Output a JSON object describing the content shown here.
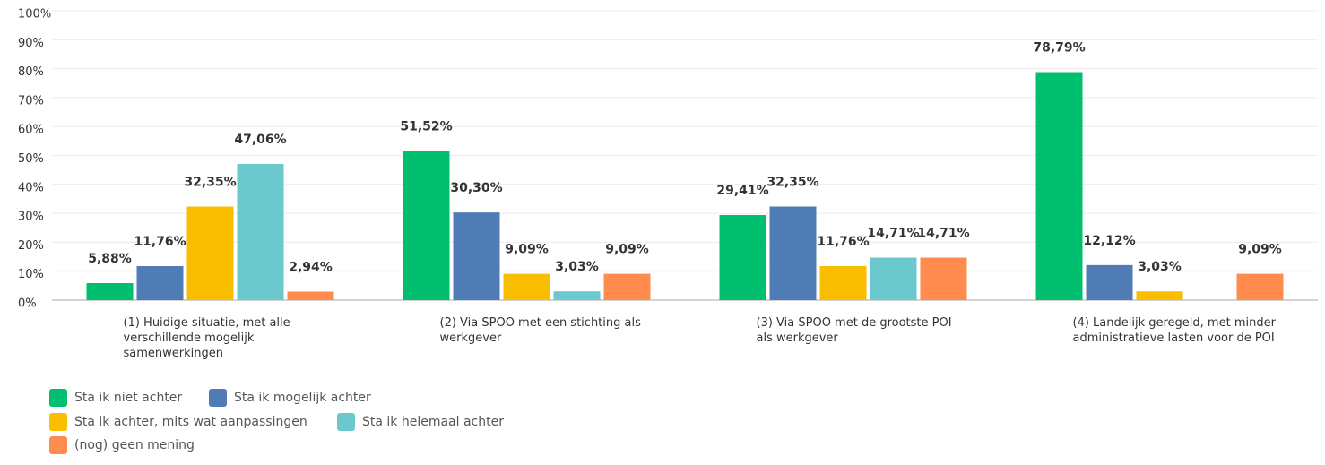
{
  "chart_data": {
    "type": "bar",
    "categories": [
      "(1) Huidige situatie, met alle verschillende mogelijk samenwerkingen",
      "(2) Via SPOO met een stichting als werkgever",
      "(3) Via SPOO met de grootste POI als werkgever",
      "(4) Landelijk geregeld, met minder administratieve lasten voor de POI"
    ],
    "series": [
      {
        "name": "Sta ik niet achter",
        "color": "#00bf6f",
        "values": [
          5.88,
          51.52,
          29.41,
          78.79
        ],
        "value_labels": [
          "5,88%",
          "51,52%",
          "29,41%",
          "78,79%"
        ]
      },
      {
        "name": "Sta ik mogelijk achter",
        "color": "#507cb6",
        "values": [
          11.76,
          30.3,
          32.35,
          12.12
        ],
        "value_labels": [
          "11,76%",
          "30,30%",
          "32,35%",
          "12,12%"
        ]
      },
      {
        "name": "Sta ik achter, mits wat aanpassingen",
        "color": "#f9be00",
        "values": [
          32.35,
          9.09,
          11.76,
          3.03
        ],
        "value_labels": [
          "32,35%",
          "9,09%",
          "11,76%",
          "3,03%"
        ]
      },
      {
        "name": "Sta ik helemaal achter",
        "color": "#6bc8cd",
        "values": [
          47.06,
          3.03,
          14.71,
          null
        ],
        "value_labels": [
          "47,06%",
          "3,03%",
          "14,71%",
          null
        ]
      },
      {
        "name": "(nog) geen mening",
        "color": "#ff8b4f",
        "values": [
          2.94,
          9.09,
          14.71,
          9.09
        ],
        "value_labels": [
          "2,94%",
          "9,09%",
          "14,71%",
          "9,09%"
        ]
      }
    ],
    "ylim": [
      0,
      100
    ],
    "yticks": [
      {
        "value": 0,
        "label": "0%"
      },
      {
        "value": 10,
        "label": "10%"
      },
      {
        "value": 20,
        "label": "20%"
      },
      {
        "value": 30,
        "label": "30%"
      },
      {
        "value": 40,
        "label": "40%"
      },
      {
        "value": 50,
        "label": "50%"
      },
      {
        "value": 60,
        "label": "60%"
      },
      {
        "value": 70,
        "label": "70%"
      },
      {
        "value": 80,
        "label": "80%"
      },
      {
        "value": 90,
        "label": "90%"
      },
      {
        "value": 100,
        "label": "100%"
      }
    ],
    "grid": true
  }
}
